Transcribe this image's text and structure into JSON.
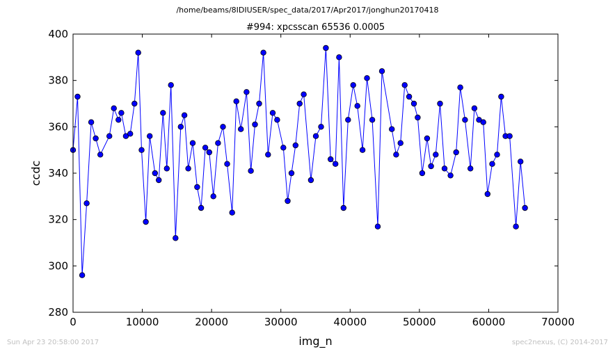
{
  "figure": {
    "suptitle": "/home/beams/8IDIUSER/spec_data/2017/Apr2017/jonghun20170418",
    "footer_left": "Sun Apr 23 20:58:00 2017",
    "footer_right": "spec2nexus, (C) 2014-2017"
  },
  "chart_data": {
    "type": "line",
    "title": "#994: xpcsscan 65536 0.0005",
    "xlabel": "img_n",
    "ylabel": "ccdc",
    "xlim": [
      0,
      70000
    ],
    "ylim": [
      280,
      400
    ],
    "xticks": [
      0,
      10000,
      20000,
      30000,
      40000,
      50000,
      60000,
      70000
    ],
    "yticks": [
      280,
      300,
      320,
      340,
      360,
      380,
      400
    ],
    "grid": false,
    "legend": "none",
    "series": [
      {
        "color": "#0000ff",
        "marker": "circle",
        "x": [
          0,
          655,
          1311,
          1966,
          2621,
          3277,
          3932,
          5243,
          5898,
          6554,
          6971,
          7619,
          8254,
          8865,
          9408,
          9893,
          10505,
          11066,
          11826,
          12370,
          12983,
          13542,
          14130,
          14794,
          15545,
          16076,
          16631,
          17278,
          17918,
          18487,
          19092,
          19663,
          20254,
          20933,
          21640,
          22246,
          22966,
          23570,
          24226,
          25045,
          25674,
          26266,
          26861,
          27473,
          28152,
          28823,
          29468,
          30359,
          30982,
          31531,
          32117,
          32706,
          33305,
          34333,
          35052,
          35805,
          36500,
          37183,
          37880,
          38405,
          39049,
          39699,
          40445,
          41049,
          41787,
          42427,
          43197,
          43992,
          44588,
          46017,
          46638,
          47277,
          47880,
          48521,
          49213,
          49758,
          50410,
          51113,
          51679,
          52350,
          52978,
          53625,
          54497,
          55303,
          55895,
          56578,
          57367,
          57937,
          58599,
          59223,
          59833,
          60509,
          61217,
          61802,
          62426,
          63034,
          63934,
          64596,
          65243
        ],
        "y": [
          350,
          373,
          296,
          327,
          362,
          355,
          348,
          356,
          368,
          363,
          366,
          356,
          357,
          370,
          392,
          350,
          319,
          356,
          340,
          337,
          366,
          342,
          378,
          312,
          360,
          365,
          342,
          353,
          334,
          325,
          351,
          349,
          330,
          353,
          360,
          344,
          323,
          371,
          359,
          375,
          341,
          361,
          370,
          392,
          348,
          366,
          363,
          351,
          328,
          340,
          352,
          370,
          374,
          337,
          356,
          360,
          394,
          346,
          344,
          390,
          325,
          363,
          378,
          369,
          350,
          381,
          363,
          317,
          384,
          359,
          348,
          353,
          378,
          373,
          370,
          364,
          340,
          355,
          343,
          348,
          370,
          342,
          339,
          349,
          377,
          363,
          342,
          368,
          363,
          362,
          331,
          344,
          348,
          373,
          356,
          356,
          317,
          345,
          325
        ]
      }
    ]
  }
}
